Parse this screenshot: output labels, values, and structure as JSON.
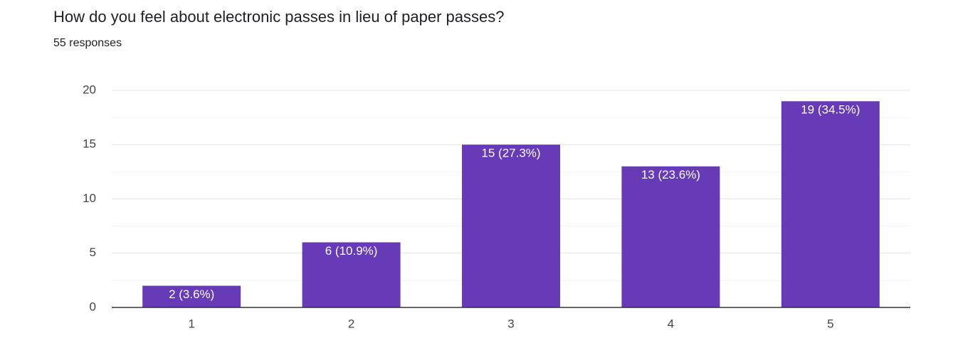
{
  "chart_data": {
    "type": "bar",
    "title": "How do you feel about electronic passes in lieu of paper passes?",
    "subtitle": "55 responses",
    "categories": [
      "1",
      "2",
      "3",
      "4",
      "5"
    ],
    "values": [
      2,
      6,
      15,
      13,
      19
    ],
    "value_labels": [
      "2 (3.6%)",
      "6 (10.9%)",
      "15 (27.3%)",
      "13 (23.6%)",
      "19 (34.5%)"
    ],
    "color": "#673ab7",
    "ylim": [
      0,
      20
    ],
    "yticks": [
      0,
      5,
      10,
      15,
      20
    ],
    "minor_yticks": [
      2.5,
      7.5,
      12.5,
      17.5
    ],
    "grid": true
  }
}
